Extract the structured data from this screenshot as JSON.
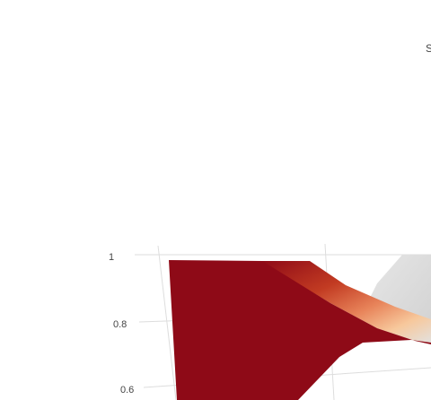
{
  "chart_data": {
    "type": "surface",
    "title": "",
    "corner_text": "S",
    "z_axis": {
      "ticks": [
        {
          "value": 1,
          "label": "1"
        },
        {
          "value": 0.8,
          "label": "0.8"
        },
        {
          "value": 0.6,
          "label": "0.6"
        }
      ]
    },
    "colorscale": {
      "low": "#8e0a17",
      "mid_low": "#c23b22",
      "mid": "#e8845a",
      "mid_high": "#f7c89c",
      "high": "#dcdcdc"
    },
    "grid": true
  }
}
